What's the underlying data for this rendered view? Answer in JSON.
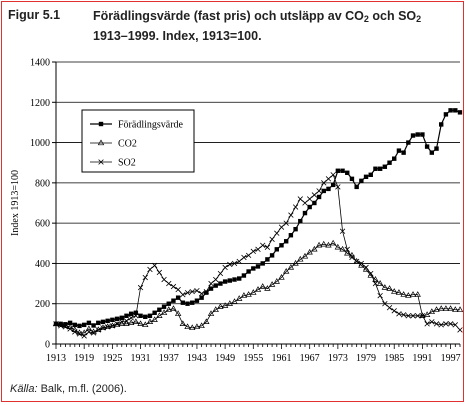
{
  "figure": {
    "label": "Figur 5.1",
    "title_line1_part1": "Förädlingsvärde (fast pris) och utsläpp av CO",
    "title_line1_sub1": "2",
    "title_line1_part2": " och SO",
    "title_line1_sub2": "2",
    "title_line2": "1913–1999. Index, 1913=100.",
    "source_label": "Källa:",
    "source_text": " Balk, m.fl. (2006)."
  },
  "chart_data": {
    "type": "line",
    "ylabel": "Index 1913=100",
    "xlabel": "",
    "ylim": [
      0,
      1400
    ],
    "xlim": [
      1913,
      1999
    ],
    "yticks": [
      0,
      200,
      400,
      600,
      800,
      1000,
      1200,
      1400
    ],
    "xticks": [
      1913,
      1919,
      1925,
      1931,
      1937,
      1943,
      1949,
      1955,
      1961,
      1967,
      1973,
      1979,
      1985,
      1991,
      1997
    ],
    "grid": "horizontal",
    "legend_position": "top-left",
    "series": [
      {
        "name": "Förädlingsvärde",
        "marker": "square",
        "x": [
          1913,
          1914,
          1915,
          1916,
          1917,
          1918,
          1919,
          1920,
          1921,
          1922,
          1923,
          1924,
          1925,
          1926,
          1927,
          1928,
          1929,
          1930,
          1931,
          1932,
          1933,
          1934,
          1935,
          1936,
          1937,
          1938,
          1939,
          1940,
          1941,
          1942,
          1943,
          1944,
          1945,
          1946,
          1947,
          1948,
          1949,
          1950,
          1951,
          1952,
          1953,
          1954,
          1955,
          1956,
          1957,
          1958,
          1959,
          1960,
          1961,
          1962,
          1963,
          1964,
          1965,
          1966,
          1967,
          1968,
          1969,
          1970,
          1971,
          1972,
          1973,
          1974,
          1975,
          1976,
          1977,
          1978,
          1979,
          1980,
          1981,
          1982,
          1983,
          1984,
          1985,
          1986,
          1987,
          1988,
          1989,
          1990,
          1991,
          1992,
          1993,
          1994,
          1995,
          1996,
          1997,
          1998,
          1999
        ],
        "values": [
          100,
          100,
          98,
          105,
          95,
          90,
          95,
          105,
          92,
          105,
          110,
          115,
          120,
          125,
          130,
          140,
          150,
          155,
          140,
          135,
          140,
          155,
          170,
          185,
          200,
          215,
          230,
          205,
          200,
          205,
          215,
          230,
          255,
          275,
          290,
          300,
          310,
          315,
          320,
          325,
          340,
          360,
          375,
          385,
          400,
          420,
          440,
          470,
          490,
          510,
          540,
          570,
          610,
          650,
          680,
          700,
          730,
          760,
          770,
          790,
          860,
          860,
          850,
          820,
          780,
          810,
          830,
          840,
          870,
          870,
          880,
          900,
          920,
          960,
          950,
          1000,
          1035,
          1040,
          1040,
          980,
          950,
          970,
          1090,
          1140,
          1160,
          1160,
          1150
        ]
      },
      {
        "name": "CO2",
        "marker": "triangle",
        "x": [
          1913,
          1914,
          1915,
          1916,
          1917,
          1918,
          1919,
          1920,
          1921,
          1922,
          1923,
          1924,
          1925,
          1926,
          1927,
          1928,
          1929,
          1930,
          1931,
          1932,
          1933,
          1934,
          1935,
          1936,
          1937,
          1938,
          1939,
          1940,
          1941,
          1942,
          1943,
          1944,
          1945,
          1946,
          1947,
          1948,
          1949,
          1950,
          1951,
          1952,
          1953,
          1954,
          1955,
          1956,
          1957,
          1958,
          1959,
          1960,
          1961,
          1962,
          1963,
          1964,
          1965,
          1966,
          1967,
          1968,
          1969,
          1970,
          1971,
          1972,
          1973,
          1974,
          1975,
          1976,
          1977,
          1978,
          1979,
          1980,
          1981,
          1982,
          1983,
          1984,
          1985,
          1986,
          1987,
          1988,
          1989,
          1990,
          1991,
          1992,
          1993,
          1994,
          1995,
          1996,
          1997,
          1998,
          1999
        ],
        "values": [
          100,
          95,
          90,
          85,
          70,
          55,
          55,
          75,
          60,
          70,
          80,
          85,
          90,
          95,
          100,
          100,
          105,
          110,
          100,
          95,
          110,
          120,
          140,
          155,
          170,
          175,
          150,
          100,
          85,
          80,
          85,
          90,
          110,
          150,
          170,
          185,
          190,
          200,
          210,
          225,
          240,
          245,
          255,
          270,
          285,
          275,
          295,
          310,
          330,
          360,
          380,
          400,
          420,
          435,
          455,
          470,
          490,
          495,
          490,
          500,
          480,
          470,
          450,
          440,
          410,
          390,
          370,
          340,
          320,
          300,
          280,
          275,
          260,
          255,
          245,
          240,
          245,
          245,
          140,
          145,
          160,
          170,
          175,
          175,
          175,
          170,
          170
        ]
      },
      {
        "name": "SO2",
        "marker": "cross",
        "x": [
          1913,
          1914,
          1915,
          1916,
          1917,
          1918,
          1919,
          1920,
          1921,
          1922,
          1923,
          1924,
          1925,
          1926,
          1927,
          1928,
          1929,
          1930,
          1931,
          1932,
          1933,
          1934,
          1935,
          1936,
          1937,
          1938,
          1939,
          1940,
          1941,
          1942,
          1943,
          1944,
          1945,
          1946,
          1947,
          1948,
          1949,
          1950,
          1951,
          1952,
          1953,
          1954,
          1955,
          1956,
          1957,
          1958,
          1959,
          1960,
          1961,
          1962,
          1963,
          1964,
          1965,
          1966,
          1967,
          1968,
          1969,
          1970,
          1971,
          1972,
          1973,
          1974,
          1975,
          1976,
          1977,
          1978,
          1979,
          1980,
          1981,
          1982,
          1983,
          1984,
          1985,
          1986,
          1987,
          1988,
          1989,
          1990,
          1991,
          1992,
          1993,
          1994,
          1995,
          1996,
          1997,
          1998,
          1999
        ],
        "values": [
          100,
          90,
          85,
          75,
          60,
          50,
          40,
          60,
          55,
          70,
          80,
          85,
          90,
          100,
          110,
          115,
          130,
          140,
          280,
          330,
          370,
          390,
          355,
          320,
          300,
          285,
          270,
          245,
          255,
          260,
          265,
          250,
          260,
          300,
          320,
          350,
          380,
          395,
          400,
          410,
          430,
          440,
          460,
          470,
          490,
          480,
          520,
          550,
          580,
          600,
          640,
          680,
          720,
          700,
          720,
          740,
          760,
          800,
          820,
          840,
          780,
          560,
          470,
          430,
          410,
          400,
          380,
          350,
          300,
          240,
          200,
          180,
          165,
          150,
          145,
          140,
          140,
          140,
          140,
          100,
          110,
          100,
          95,
          100,
          100,
          95,
          70
        ]
      }
    ]
  }
}
